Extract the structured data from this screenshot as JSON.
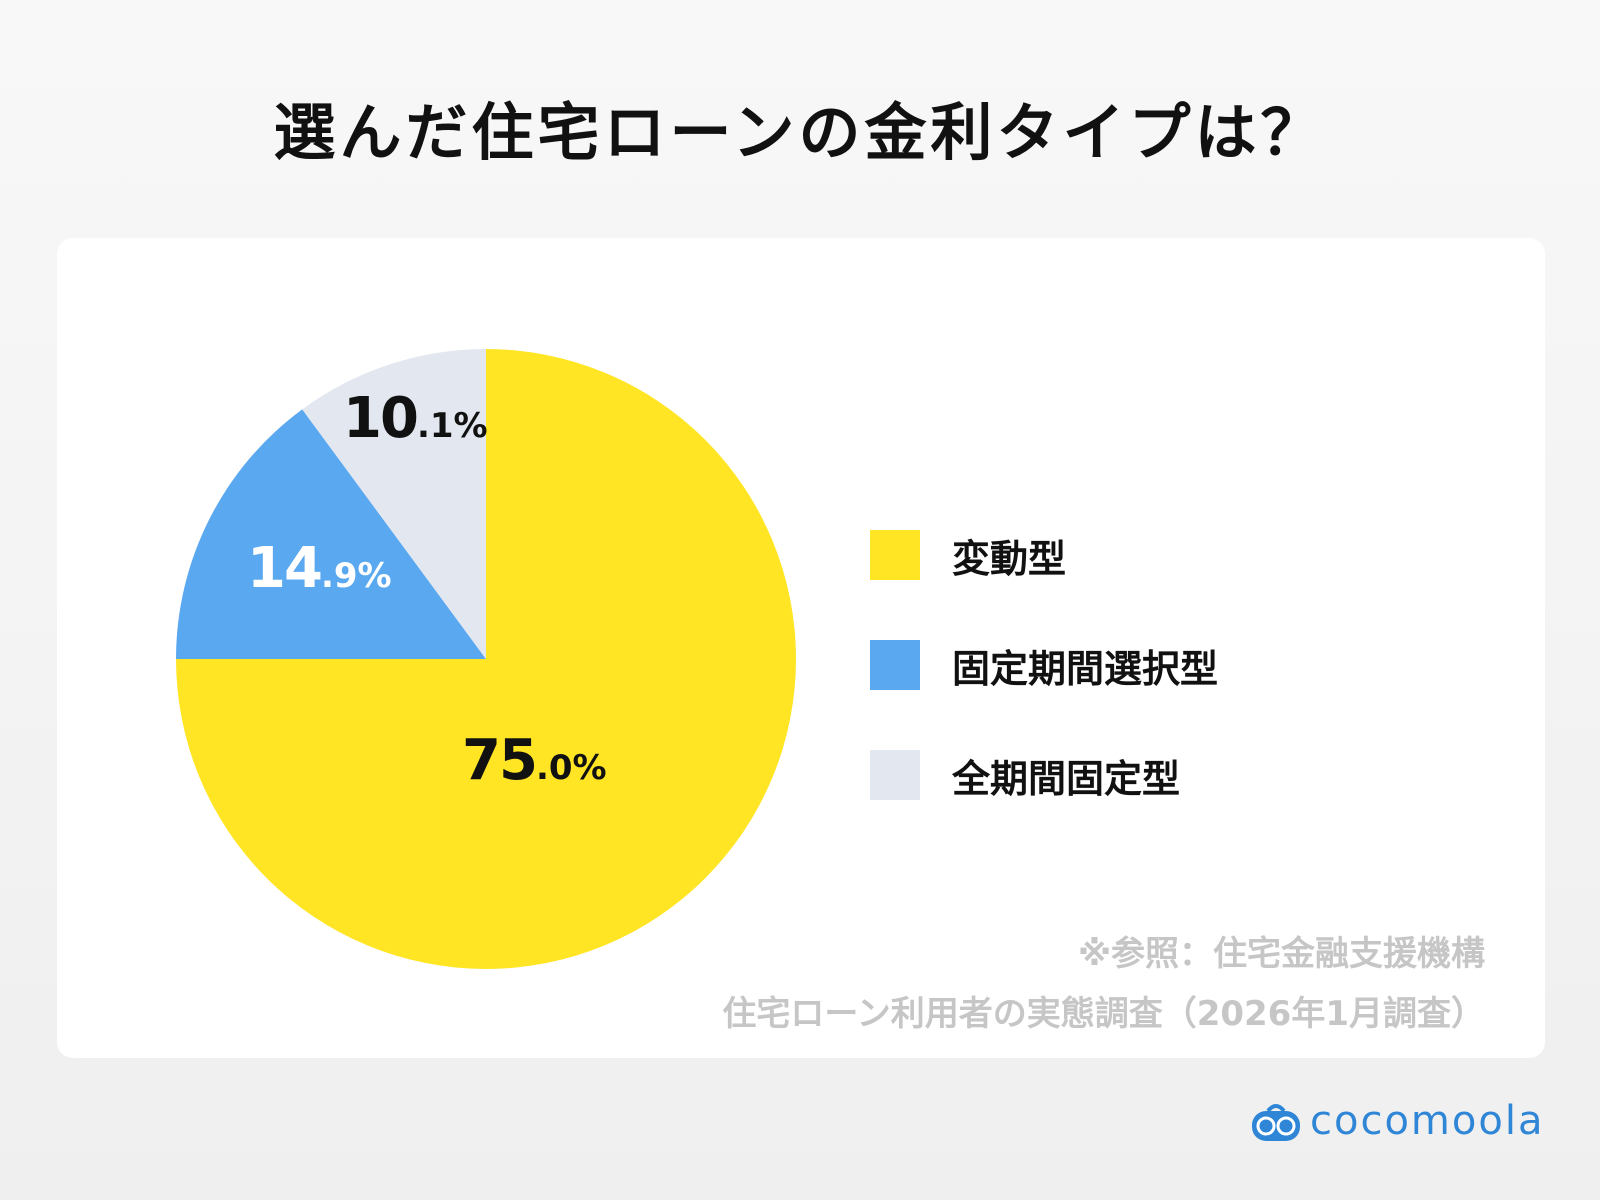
{
  "title": "選んだ住宅ローンの金利タイプは？",
  "chart_data": {
    "type": "pie",
    "title": "選んだ住宅ローンの金利タイプは？",
    "categories": [
      "変動型",
      "固定期間選択型",
      "全期間固定型"
    ],
    "values": [
      75.0,
      14.9,
      10.1
    ],
    "unit": "%",
    "colors": [
      "#FFE524",
      "#5AA8F0",
      "#E3E7EF"
    ],
    "label_colors": [
      "#111111",
      "#FFFFFF",
      "#111111"
    ],
    "start_angle": "12 o'clock, clockwise",
    "legend_position": "right"
  },
  "labels": {
    "yellow": {
      "big": "75",
      "small": ".0%"
    },
    "blue": {
      "big": "14",
      "small": ".9%"
    },
    "grey": {
      "big": "10",
      "small": ".1%"
    }
  },
  "legend": [
    {
      "label": "変動型",
      "color": "#FFE524"
    },
    {
      "label": "固定期間選択型",
      "color": "#5AA8F0"
    },
    {
      "label": "全期間固定型",
      "color": "#E3E7EF"
    }
  ],
  "source": {
    "line1": "※参照：住宅金融支援機構",
    "line2": "住宅ローン利用者の実態調査（2026年1月調査）"
  },
  "brand": {
    "name": "cocomoola",
    "color": "#2F86D6"
  }
}
